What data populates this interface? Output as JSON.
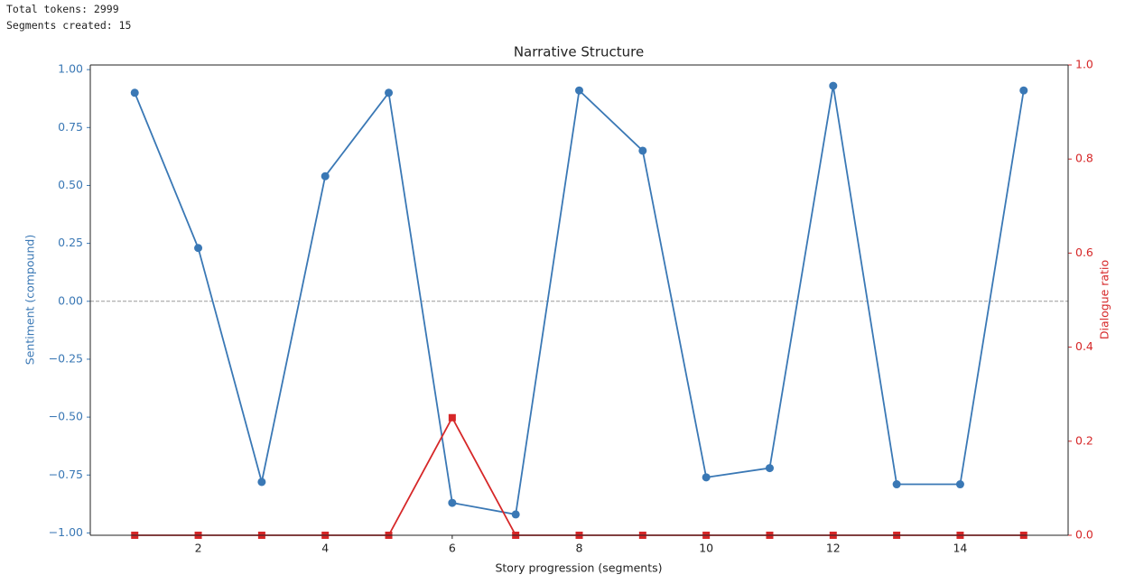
{
  "console": [
    "Total tokens: 2999",
    "Segments created: 15"
  ],
  "chart_data": {
    "type": "line",
    "title": "Narrative Structure",
    "x_label": "Story progression (segments)",
    "y_label": "Sentiment (compound)",
    "y_label_color": "#3a78b5",
    "y2_label": "Dialogue ratio",
    "y2_label_color": "#d62728",
    "x": [
      1,
      2,
      3,
      4,
      5,
      6,
      7,
      8,
      9,
      10,
      11,
      12,
      13,
      14,
      15
    ],
    "xlim": [
      0.3,
      15.7
    ],
    "xticks": [
      2,
      4,
      6,
      8,
      10,
      12,
      14
    ],
    "ylim": [
      -1.01,
      1.02
    ],
    "yticks": [
      {
        "value": -1,
        "label": "−1.00"
      },
      {
        "value": -0.75,
        "label": "−0.75"
      },
      {
        "value": -0.5,
        "label": "−0.50"
      },
      {
        "value": -0.25,
        "label": "−0.25"
      },
      {
        "value": 0,
        "label": "0.00"
      },
      {
        "value": 0.25,
        "label": "0.25"
      },
      {
        "value": 0.5,
        "label": "0.50"
      },
      {
        "value": 0.75,
        "label": "0.75"
      },
      {
        "value": 1,
        "label": "1.00"
      }
    ],
    "y2lim": [
      0,
      1
    ],
    "y2ticks": [
      {
        "value": 0,
        "label": "0.0"
      },
      {
        "value": 0.2,
        "label": "0.2"
      },
      {
        "value": 0.4,
        "label": "0.4"
      },
      {
        "value": 0.6,
        "label": "0.6"
      },
      {
        "value": 0.8,
        "label": "0.8"
      },
      {
        "value": 1,
        "label": "1.0"
      }
    ],
    "reference_line": 0,
    "series": [
      {
        "color": "#3a78b5",
        "marker": "circle",
        "values": [
          0.9,
          0.23,
          -0.78,
          0.54,
          0.9,
          -0.87,
          -0.92,
          0.91,
          0.65,
          -0.76,
          -0.72,
          0.93,
          -0.79,
          -0.79,
          0.91
        ]
      },
      {
        "color": "#d62728",
        "marker": "square",
        "axis": "y2",
        "values": [
          0,
          0,
          0,
          0,
          0,
          0.25,
          0,
          0,
          0,
          0,
          0,
          0,
          0,
          0,
          0
        ]
      }
    ]
  }
}
